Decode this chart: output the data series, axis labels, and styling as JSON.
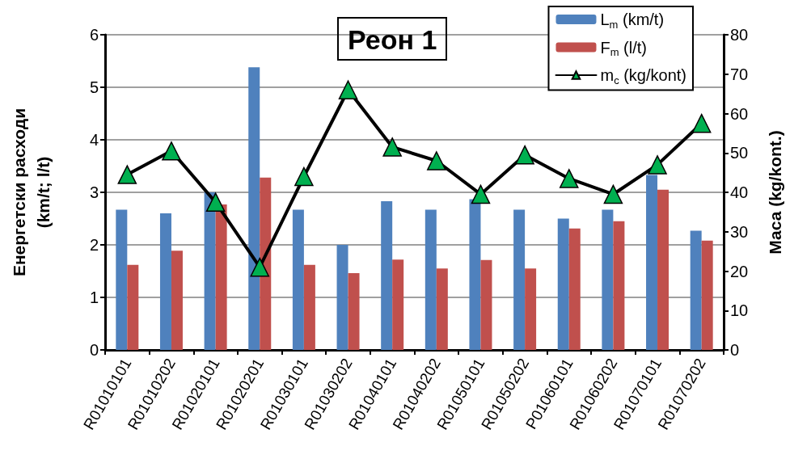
{
  "chart_data": {
    "type": "bar",
    "title": "Реон 1",
    "ylabel": "Енергетски расходи\n(km/t; l/t)",
    "y2label": "Маса (kg/kont.)",
    "categories": [
      "R01010101",
      "R01010202",
      "R01020101",
      "R01020201",
      "R01030101",
      "R01030202",
      "R01040101",
      "R01040202",
      "R01050101",
      "R01050202",
      "P01060101",
      "R01060202",
      "R01070101",
      "R01070202"
    ],
    "series": [
      {
        "name": "L$_{m}$ (km/t)",
        "color": "#4f81bd",
        "values": [
          2.67,
          2.6,
          3.0,
          5.38,
          2.67,
          2.0,
          2.83,
          2.67,
          2.87,
          2.67,
          2.5,
          2.67,
          3.33,
          2.27
        ]
      },
      {
        "name": "F$_{m}$ (l/t)",
        "color": "#c0504d",
        "values": [
          1.62,
          1.89,
          2.77,
          3.28,
          1.62,
          1.46,
          1.72,
          1.55,
          1.71,
          1.55,
          2.31,
          2.45,
          3.05,
          2.08
        ]
      },
      {
        "name": "m$_{c}$ (kg/kont)",
        "type": "line",
        "axis": "y2",
        "color": "#000000",
        "marker": "triangle",
        "values": [
          44.5,
          50.5,
          37.5,
          21,
          44,
          66,
          51.5,
          48,
          39.5,
          49.5,
          43.5,
          39.5,
          47,
          57.5
        ]
      }
    ],
    "ylim": [
      0,
      6
    ],
    "yticks": [
      0,
      1,
      2,
      3,
      4,
      5,
      6
    ],
    "y2lim": [
      0,
      80
    ],
    "y2ticks": [
      0,
      10,
      20,
      30,
      40,
      50,
      60,
      70,
      80
    ],
    "grid": "y",
    "legend": "top right",
    "line_style": "solid"
  }
}
